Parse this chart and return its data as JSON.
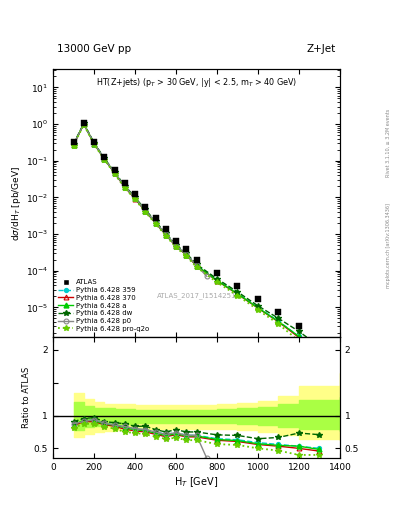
{
  "title_left": "13000 GeV pp",
  "title_right": "Z+Jet",
  "annotation": "HT(Z+jets) (p$_{T}$ > 30 GeV, |y| < 2.5, m$_{T}$ > 40 GeV)",
  "atlas_label": "ATLAS_2017_I1514251",
  "right_label1": "Rivet 3.1.10, ≥ 3.2M events",
  "right_label2": "mcplots.cern.ch [arXiv:1306.3436]",
  "ylabel_main": "dσ/dH$_{T}$ [pb/GeV]",
  "ylabel_ratio": "Ratio to ATLAS",
  "xlabel": "H$_{T}$ [GeV]",
  "xlim": [
    0,
    1400
  ],
  "atlas_x": [
    100,
    150,
    200,
    250,
    300,
    350,
    400,
    450,
    500,
    550,
    600,
    650,
    700,
    800,
    900,
    1000,
    1100,
    1200,
    1300
  ],
  "atlas_y": [
    0.32,
    1.1,
    0.32,
    0.13,
    0.055,
    0.024,
    0.012,
    0.0056,
    0.0028,
    0.0014,
    0.00065,
    0.0004,
    0.0002,
    8.5e-05,
    3.8e-05,
    1.7e-05,
    7.5e-06,
    3e-06,
    1.2e-06
  ],
  "py359_x": [
    100,
    150,
    200,
    250,
    300,
    350,
    400,
    450,
    500,
    550,
    600,
    650,
    700,
    800,
    900,
    1000,
    1100,
    1200,
    1300
  ],
  "py359_y": [
    0.28,
    1.0,
    0.3,
    0.115,
    0.047,
    0.02,
    0.0095,
    0.0044,
    0.0021,
    0.001,
    0.00048,
    0.00028,
    0.00014,
    5.5e-05,
    2.4e-05,
    1e-05,
    4.2e-06,
    1.6e-06,
    6e-07
  ],
  "py370_x": [
    100,
    150,
    200,
    250,
    300,
    350,
    400,
    450,
    500,
    550,
    600,
    650,
    700,
    800,
    900,
    1000,
    1100,
    1200,
    1300
  ],
  "py370_y": [
    0.27,
    1.0,
    0.29,
    0.112,
    0.046,
    0.019,
    0.0092,
    0.0042,
    0.002,
    0.00095,
    0.00046,
    0.00027,
    0.000135,
    5.3e-05,
    2.3e-05,
    9.5e-06,
    4e-06,
    1.5e-06,
    5.5e-07
  ],
  "pya_x": [
    100,
    150,
    200,
    250,
    300,
    350,
    400,
    450,
    500,
    550,
    600,
    650,
    700,
    800,
    900,
    1000,
    1100,
    1200,
    1300
  ],
  "pya_y": [
    0.275,
    1.02,
    0.295,
    0.113,
    0.047,
    0.0195,
    0.0094,
    0.0043,
    0.00205,
    0.00097,
    0.00047,
    0.000275,
    0.000138,
    5.4e-05,
    2.35e-05,
    9.7e-06,
    4.1e-06,
    1.6e-06,
    5.8e-07
  ],
  "pydw_x": [
    100,
    150,
    200,
    250,
    300,
    350,
    400,
    450,
    500,
    550,
    600,
    650,
    700,
    800,
    900,
    1000,
    1100,
    1200,
    1300
  ],
  "pydw_y": [
    0.29,
    1.05,
    0.31,
    0.118,
    0.049,
    0.021,
    0.01,
    0.0047,
    0.0022,
    0.00105,
    0.00051,
    0.0003,
    0.00015,
    6e-05,
    2.65e-05,
    1.1e-05,
    5e-06,
    2.2e-06,
    8.5e-07
  ],
  "pyp0_x": [
    100,
    150,
    200,
    250,
    300,
    350,
    400,
    450,
    500,
    550,
    600,
    650,
    700,
    750
  ],
  "pyp0_y": [
    0.28,
    1.0,
    0.3,
    0.115,
    0.047,
    0.02,
    0.0096,
    0.0044,
    0.0021,
    0.001,
    0.00048,
    0.00028,
    0.00014,
    7e-05
  ],
  "pyproq2o_x": [
    100,
    150,
    200,
    250,
    300,
    350,
    400,
    450,
    500,
    550,
    600,
    650,
    700,
    800,
    900,
    1000,
    1100,
    1200,
    1300
  ],
  "pyproq2o_y": [
    0.26,
    0.96,
    0.28,
    0.108,
    0.044,
    0.018,
    0.0088,
    0.004,
    0.0019,
    0.0009,
    0.00043,
    0.00025,
    0.000125,
    4.8e-05,
    2.1e-05,
    8.5e-06,
    3.5e-06,
    1.2e-06,
    4.8e-07
  ],
  "band_yellow_x": [
    100,
    150,
    200,
    250,
    300,
    400,
    500,
    600,
    700,
    800,
    900,
    1000,
    1100,
    1200,
    1400
  ],
  "band_yellow_lo": [
    0.68,
    0.72,
    0.75,
    0.77,
    0.78,
    0.79,
    0.8,
    0.8,
    0.79,
    0.79,
    0.78,
    0.75,
    0.7,
    0.65,
    0.62
  ],
  "band_yellow_hi": [
    1.35,
    1.25,
    1.2,
    1.18,
    1.17,
    1.16,
    1.16,
    1.16,
    1.16,
    1.17,
    1.19,
    1.22,
    1.3,
    1.45,
    1.65
  ],
  "band_green_x": [
    100,
    150,
    200,
    250,
    300,
    400,
    500,
    600,
    700,
    800,
    900,
    1000,
    1100,
    1200,
    1400
  ],
  "band_green_lo": [
    0.78,
    0.82,
    0.84,
    0.86,
    0.87,
    0.88,
    0.88,
    0.88,
    0.88,
    0.88,
    0.87,
    0.85,
    0.82,
    0.79,
    0.76
  ],
  "band_green_hi": [
    1.2,
    1.15,
    1.12,
    1.11,
    1.1,
    1.09,
    1.09,
    1.09,
    1.09,
    1.1,
    1.11,
    1.13,
    1.18,
    1.24,
    1.28
  ],
  "color_py359": "#00CCCC",
  "color_py370": "#CC0000",
  "color_pya": "#00CC00",
  "color_pydw": "#006600",
  "color_pyp0": "#888888",
  "color_pyproq2o": "#66CC00",
  "color_atlas": "black",
  "color_band_yellow": "#FFFF88",
  "color_band_green": "#AAFF44"
}
